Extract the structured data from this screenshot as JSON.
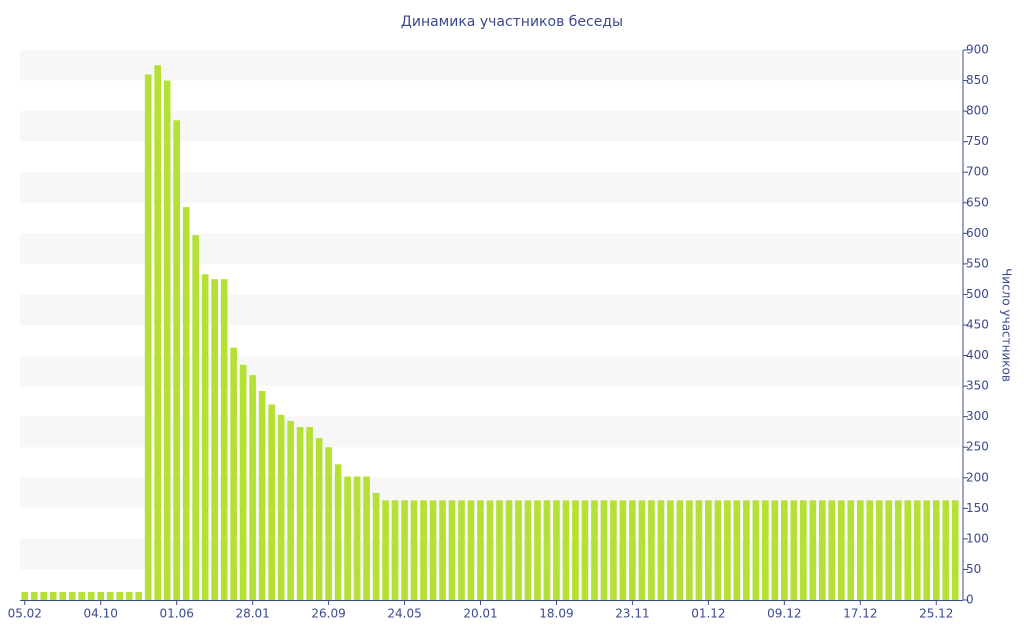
{
  "chart_data": {
    "type": "bar",
    "title": "Динамика участников беседы",
    "y_label": "Число участников",
    "categories": [
      "05.02",
      null,
      null,
      null,
      null,
      null,
      null,
      null,
      "04.10",
      null,
      null,
      null,
      null,
      null,
      null,
      null,
      "01.06",
      null,
      null,
      null,
      null,
      null,
      null,
      null,
      "28.01",
      null,
      null,
      null,
      null,
      null,
      null,
      null,
      "26.09",
      null,
      null,
      null,
      null,
      null,
      null,
      null,
      "24.05",
      null,
      null,
      null,
      null,
      null,
      null,
      null,
      "20.01",
      null,
      null,
      null,
      null,
      null,
      null,
      null,
      "18.09",
      null,
      null,
      null,
      null,
      null,
      null,
      null,
      "23.11",
      null,
      null,
      null,
      null,
      null,
      null,
      null,
      "01.12",
      null,
      null,
      null,
      null,
      null,
      null,
      null,
      "09.12",
      null,
      null,
      null,
      null,
      null,
      null,
      null,
      "17.12",
      null,
      null,
      null,
      null,
      null,
      null,
      null,
      "25.12",
      null,
      null
    ],
    "values": [
      13,
      13,
      13,
      13,
      13,
      13,
      13,
      13,
      13,
      13,
      13,
      13,
      13,
      860,
      875,
      850,
      785,
      643,
      597,
      533,
      525,
      525,
      413,
      385,
      368,
      342,
      320,
      303,
      293,
      283,
      283,
      265,
      250,
      222,
      202,
      202,
      202,
      175,
      163,
      163,
      163,
      163,
      163,
      163,
      163,
      163,
      163,
      163,
      163,
      163,
      163,
      163,
      163,
      163,
      163,
      163,
      163,
      163,
      163,
      163,
      163,
      163,
      163,
      163,
      163,
      163,
      163,
      163,
      163,
      163,
      163,
      163,
      163,
      163,
      163,
      163,
      163,
      163,
      163,
      163,
      163,
      163,
      163,
      163,
      163,
      163,
      163,
      163,
      163,
      163,
      163,
      163,
      163,
      163,
      163,
      163,
      163,
      163,
      163
    ],
    "color": "#b5e035",
    "ylim": [
      0,
      900
    ],
    "yticks": [
      0,
      50,
      100,
      150,
      200,
      250,
      300,
      350,
      400,
      450,
      500,
      550,
      600,
      650,
      700,
      750,
      800,
      850,
      900
    ],
    "y_axis_side": "right",
    "grid": true
  }
}
